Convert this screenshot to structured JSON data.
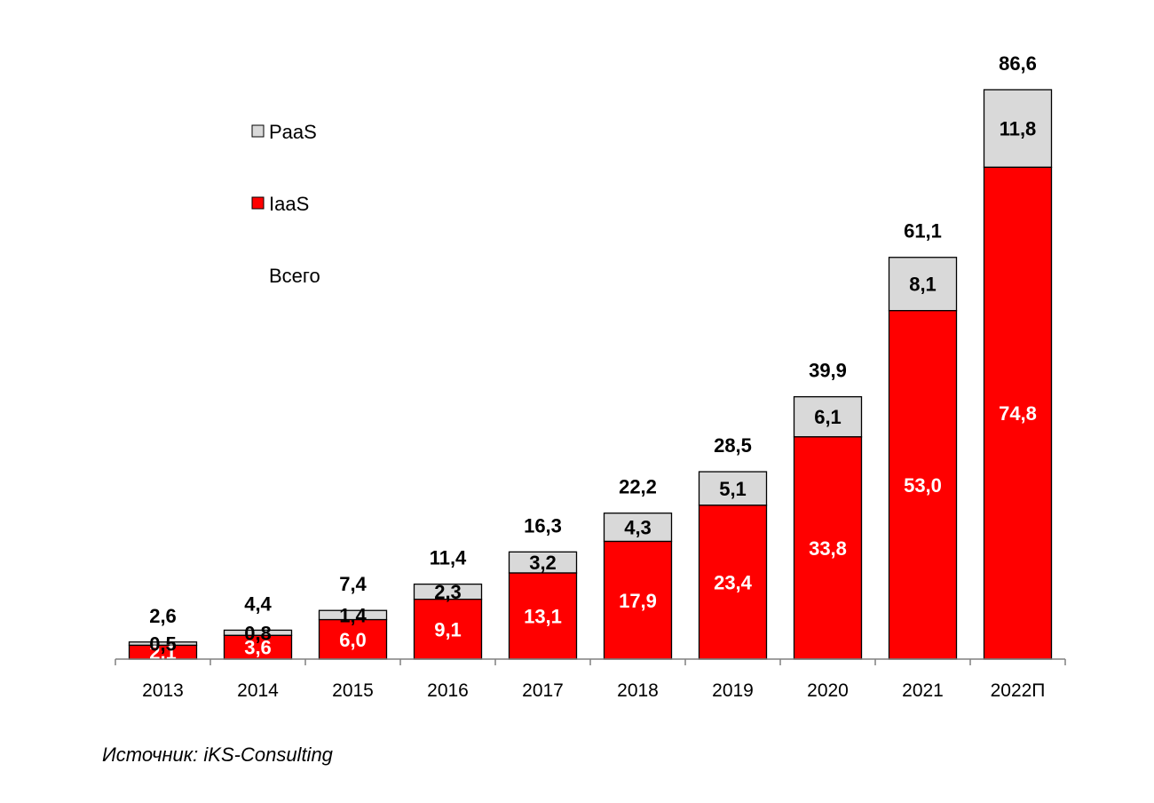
{
  "chart_data": {
    "type": "bar",
    "stacked": true,
    "categories": [
      "2013",
      "2014",
      "2015",
      "2016",
      "2017",
      "2018",
      "2019",
      "2020",
      "2021",
      "2022П"
    ],
    "series": [
      {
        "name": "IaaS",
        "color": "#ff0000",
        "label_color": "#ffffff",
        "values": [
          2.1,
          3.6,
          6.0,
          9.1,
          13.1,
          17.9,
          23.4,
          33.8,
          53.0,
          74.8
        ],
        "labels": [
          "2,1",
          "3,6",
          "6,0",
          "9,1",
          "13,1",
          "17,9",
          "23,4",
          "33,8",
          "53,0",
          "74,8"
        ]
      },
      {
        "name": "PaaS",
        "color": "#d9d9d9",
        "label_color": "#000000",
        "values": [
          0.5,
          0.8,
          1.4,
          2.3,
          3.2,
          4.3,
          5.1,
          6.1,
          8.1,
          11.8
        ],
        "labels": [
          "0,5",
          "0,8",
          "1,4",
          "2,3",
          "3,2",
          "4,3",
          "5,1",
          "6,1",
          "8,1",
          "11,8"
        ]
      }
    ],
    "totals": {
      "name": "Всего",
      "values": [
        2.6,
        4.4,
        7.4,
        11.4,
        16.3,
        22.2,
        28.5,
        39.9,
        61.1,
        86.6
      ],
      "labels": [
        "2,6",
        "4,4",
        "7,4",
        "11,4",
        "16,3",
        "22,2",
        "28,5",
        "39,9",
        "61,1",
        "86,6"
      ]
    },
    "legend": {
      "placement": "top-left",
      "entries": [
        "PaaS",
        "IaaS",
        "Всего"
      ]
    },
    "ylim": [
      0,
      86.6
    ],
    "grid": false,
    "title": "",
    "xlabel": "",
    "ylabel": ""
  },
  "source": "Источник: iKS-Consulting"
}
